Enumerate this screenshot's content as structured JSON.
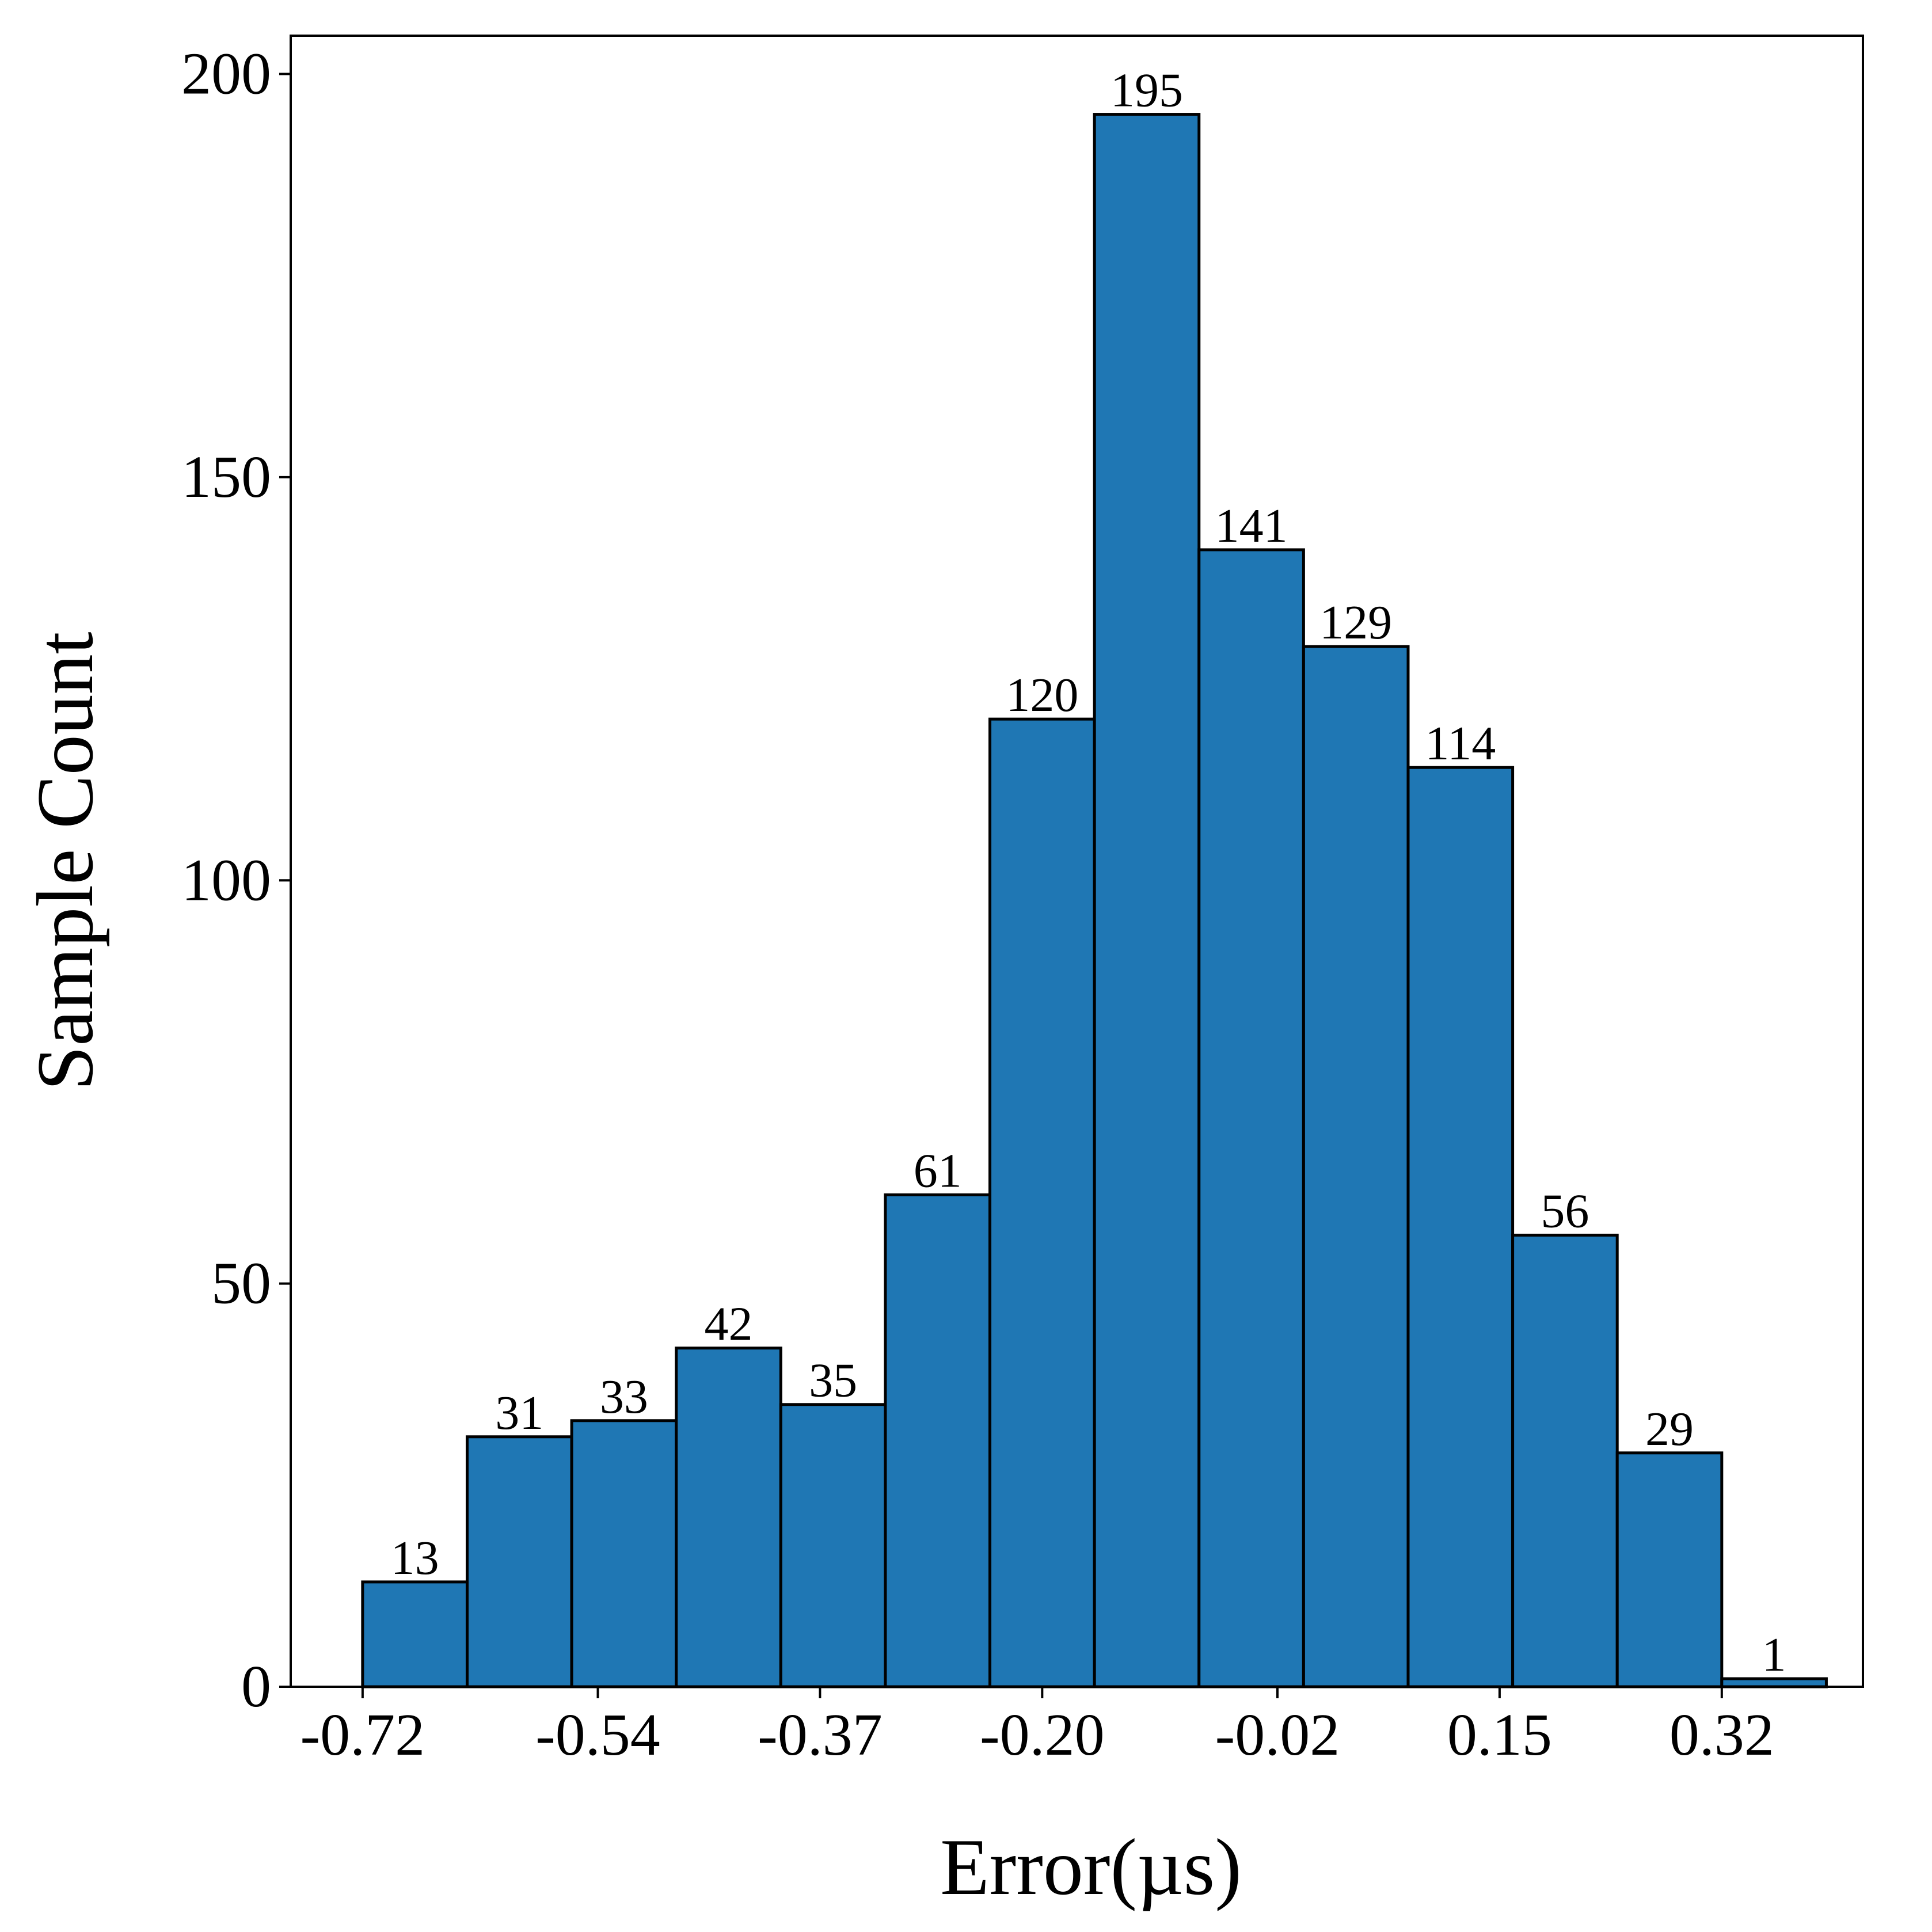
{
  "chart_data": {
    "type": "histogram",
    "x_label": "Error(µs)",
    "y_label": "Sample Count",
    "bins": [
      -0.72,
      -0.64,
      -0.56,
      -0.48,
      -0.4,
      -0.32,
      -0.24,
      -0.16,
      -0.08,
      0,
      0.08,
      0.16,
      0.24,
      0.32,
      0.4
    ],
    "values": [
      13,
      31,
      33,
      42,
      35,
      61,
      120,
      195,
      141,
      129,
      114,
      56,
      29,
      1
    ],
    "color": "#1f77b4",
    "edgecolor": "#000000",
    "xlim": [
      -0.775,
      0.428
    ],
    "ylim": [
      0,
      204.75
    ],
    "xticks": [
      -0.72,
      -0.54,
      -0.37,
      {
        "value": -0.2,
        "label": "-0.20"
      },
      -0.02,
      0.15,
      0.32
    ],
    "yticks": [
      0,
      50,
      100,
      150,
      200
    ]
  }
}
